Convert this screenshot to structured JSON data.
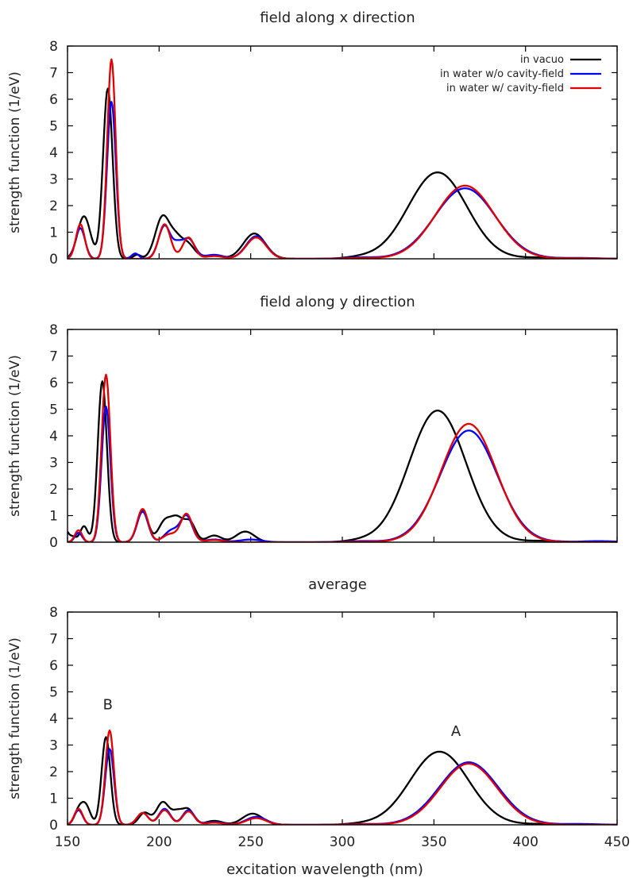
{
  "chart_data": [
    {
      "type": "line",
      "title": "field along x direction",
      "xlabel": "",
      "ylabel": "strength function (1/eV)",
      "xlim": [
        150,
        450
      ],
      "ylim": [
        0,
        8
      ],
      "yticks": [
        "0",
        "1",
        "2",
        "3",
        "4",
        "5",
        "6",
        "7",
        "8"
      ],
      "xticks": [],
      "legend_position": "top-right",
      "annotations": [],
      "series": [
        {
          "name": "in vacuo",
          "color": "#000000",
          "peaks": [
            [
              159,
              1.6,
              3.5
            ],
            [
              172,
              6.4,
              2.6
            ],
            [
              188,
              0.15,
              2.0
            ],
            [
              202,
              1.6,
              4.0
            ],
            [
              209,
              0.5,
              3.0
            ],
            [
              215,
              0.6,
              4.0
            ],
            [
              229,
              0.12,
              5.0
            ],
            [
              252,
              0.95,
              6.0
            ],
            [
              310,
              0.05,
              8.0
            ],
            [
              352,
              3.25,
              16.0
            ],
            [
              410,
              0.05,
              10.0
            ]
          ]
        },
        {
          "name": "in water w/o cavity-field",
          "color": "#0000ff",
          "peaks": [
            [
              157,
              1.15,
              2.6
            ],
            [
              174,
              5.9,
              2.4
            ],
            [
              187,
              0.2,
              2.0
            ],
            [
              203,
              1.25,
              3.3
            ],
            [
              210,
              0.4,
              2.5
            ],
            [
              216,
              0.75,
              3.5
            ],
            [
              230,
              0.15,
              5.0
            ],
            [
              253,
              0.85,
              5.5
            ],
            [
              310,
              0.05,
              8.0
            ],
            [
              367,
              2.65,
              16.5
            ],
            [
              430,
              0.03,
              10.0
            ]
          ]
        },
        {
          "name": "in water w/ cavity-field",
          "color": "#e00000",
          "peaks": [
            [
              157,
              1.3,
              2.4
            ],
            [
              174,
              7.5,
              2.3
            ],
            [
              203,
              1.3,
              3.2
            ],
            [
              216,
              0.8,
              3.2
            ],
            [
              230,
              0.1,
              5.0
            ],
            [
              253,
              0.8,
              5.5
            ],
            [
              310,
              0.03,
              8.0
            ],
            [
              367,
              2.75,
              16.0
            ],
            [
              430,
              0.02,
              10.0
            ]
          ]
        }
      ]
    },
    {
      "type": "line",
      "title": "field along y direction",
      "xlabel": "",
      "ylabel": "strength function (1/eV)",
      "xlim": [
        150,
        450
      ],
      "ylim": [
        0,
        8
      ],
      "yticks": [
        "0",
        "1",
        "2",
        "3",
        "4",
        "5",
        "6",
        "7",
        "8"
      ],
      "xticks": [],
      "legend_position": "",
      "annotations": [],
      "series": [
        {
          "name": "in vacuo",
          "color": "#000000",
          "peaks": [
            [
              148,
              0.55,
              2.0
            ],
            [
              153,
              0.2,
              2.0
            ],
            [
              159,
              0.6,
              2.0
            ],
            [
              169,
              6.05,
              2.5
            ],
            [
              191,
              1.2,
              3.0
            ],
            [
              203,
              0.75,
              3.5
            ],
            [
              210,
              0.85,
              3.5
            ],
            [
              217,
              0.7,
              3.0
            ],
            [
              230,
              0.25,
              4.0
            ],
            [
              247,
              0.4,
              5.0
            ],
            [
              310,
              0.05,
              8.0
            ],
            [
              352,
              4.95,
              15.5
            ],
            [
              410,
              0.05,
              10.0
            ]
          ]
        },
        {
          "name": "in water w/o cavity-field",
          "color": "#0000ff",
          "peaks": [
            [
              156,
              0.35,
              2.0
            ],
            [
              171,
              5.1,
              2.4
            ],
            [
              191,
              1.15,
              3.0
            ],
            [
              207,
              0.45,
              4.0
            ],
            [
              215,
              0.95,
              3.2
            ],
            [
              230,
              0.1,
              5.0
            ],
            [
              250,
              0.1,
              6.0
            ],
            [
              310,
              0.04,
              8.0
            ],
            [
              369,
              4.2,
              15.5
            ],
            [
              440,
              0.04,
              10.0
            ]
          ]
        },
        {
          "name": "in water w/ cavity-field",
          "color": "#e00000",
          "peaks": [
            [
              156,
              0.45,
              2.0
            ],
            [
              171,
              6.3,
              2.4
            ],
            [
              191,
              1.25,
              3.0
            ],
            [
              206,
              0.3,
              4.0
            ],
            [
              215,
              1.05,
              3.2
            ],
            [
              230,
              0.08,
              5.0
            ],
            [
              310,
              0.02,
              8.0
            ],
            [
              369,
              4.45,
              15.0
            ]
          ]
        }
      ]
    },
    {
      "type": "line",
      "title": "average",
      "xlabel": "excitation wavelength (nm)",
      "ylabel": "strength function (1/eV)",
      "xlim": [
        150,
        450
      ],
      "ylim": [
        0,
        8
      ],
      "yticks": [
        "0",
        "1",
        "2",
        "3",
        "4",
        "5",
        "6",
        "7",
        "8"
      ],
      "xticks": [
        "150",
        "200",
        "250",
        "300",
        "350",
        "400",
        "450"
      ],
      "legend_position": "",
      "annotations": [
        {
          "text": "B",
          "x": 172,
          "y": 4.35
        },
        {
          "text": "A",
          "x": 362,
          "y": 3.35
        }
      ],
      "series": [
        {
          "name": "in vacuo",
          "color": "#000000",
          "peaks": [
            [
              156,
              0.5,
              2.3
            ],
            [
              160,
              0.7,
              2.5
            ],
            [
              171,
              3.3,
              2.4
            ],
            [
              192,
              0.45,
              3.0
            ],
            [
              202,
              0.85,
              3.5
            ],
            [
              210,
              0.45,
              3.0
            ],
            [
              216,
              0.55,
              3.0
            ],
            [
              230,
              0.15,
              4.5
            ],
            [
              251,
              0.42,
              5.5
            ],
            [
              310,
              0.03,
              8.0
            ],
            [
              353,
              2.75,
              16.0
            ],
            [
              410,
              0.03,
              10.0
            ]
          ]
        },
        {
          "name": "in water w/o cavity-field",
          "color": "#0000ff",
          "peaks": [
            [
              156,
              0.55,
              2.3
            ],
            [
              173,
              2.85,
              2.4
            ],
            [
              191,
              0.45,
              3.0
            ],
            [
              203,
              0.6,
              3.2
            ],
            [
              216,
              0.55,
              3.2
            ],
            [
              230,
              0.1,
              5.0
            ],
            [
              253,
              0.3,
              5.5
            ],
            [
              310,
              0.03,
              8.0
            ],
            [
              369,
              2.35,
              16.0
            ],
            [
              430,
              0.03,
              10.0
            ]
          ]
        },
        {
          "name": "in water w/ cavity-field",
          "color": "#e00000",
          "peaks": [
            [
              156,
              0.6,
              2.3
            ],
            [
              173,
              3.55,
              2.3
            ],
            [
              191,
              0.45,
              3.0
            ],
            [
              203,
              0.55,
              3.2
            ],
            [
              216,
              0.5,
              3.2
            ],
            [
              230,
              0.08,
              5.0
            ],
            [
              253,
              0.25,
              5.5
            ],
            [
              310,
              0.02,
              8.0
            ],
            [
              369,
              2.3,
              15.5
            ]
          ]
        }
      ]
    }
  ]
}
